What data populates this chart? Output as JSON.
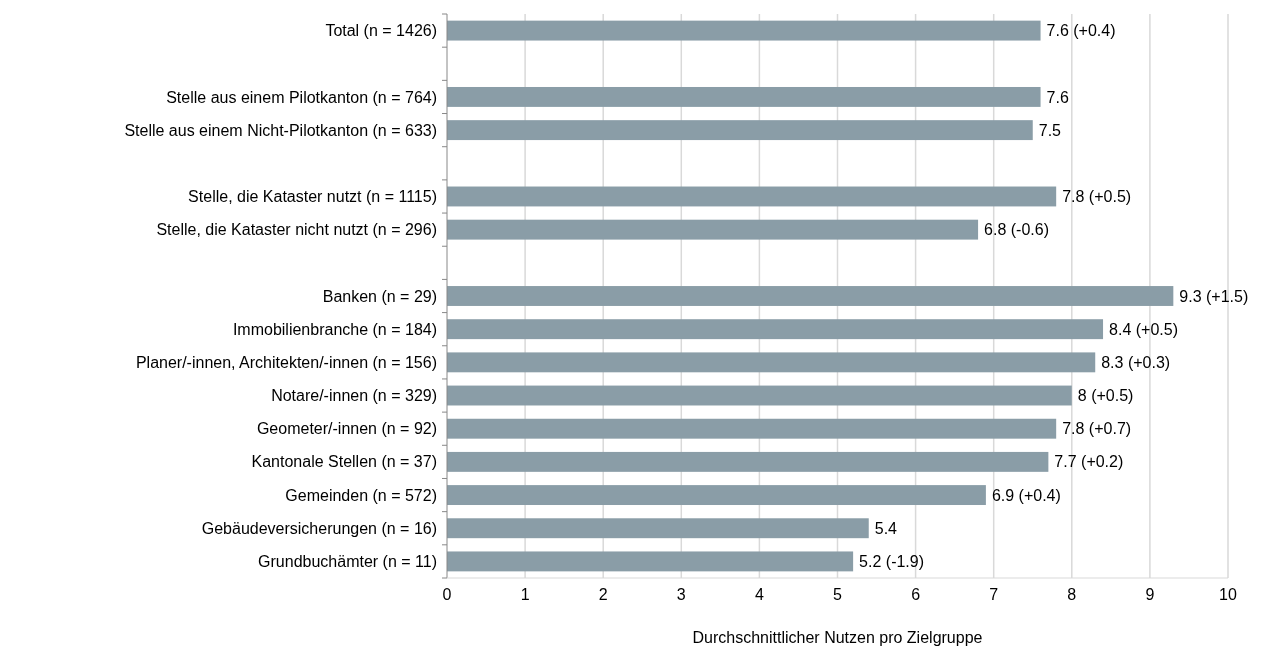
{
  "chart_data": {
    "type": "bar",
    "orientation": "horizontal",
    "xlabel": "Durchschnittlicher Nutzen pro Zielgruppe",
    "categories": [
      "Total (n = 1426)",
      null,
      "Stelle aus einem Pilotkanton (n = 764)",
      "Stelle aus einem Nicht-Pilotkanton (n = 633)",
      null,
      "Stelle, die Kataster nutzt (n = 1115)",
      "Stelle, die Kataster nicht nutzt (n = 296)",
      null,
      "Banken (n = 29)",
      "Immobilienbranche (n = 184)",
      "Planer/-innen, Architekten/-innen (n = 156)",
      "Notare/-innen (n = 329)",
      "Geometer/-innen (n = 92)",
      "Kantonale Stellen  (n = 37)",
      "Gemeinden (n = 572)",
      "Gebäudeversicherungen (n = 16)",
      "Grundbuchämter (n = 11)"
    ],
    "values": [
      7.6,
      null,
      7.6,
      7.5,
      null,
      7.8,
      6.8,
      null,
      9.3,
      8.4,
      8.3,
      8,
      7.8,
      7.7,
      6.9,
      5.4,
      5.2
    ],
    "value_labels": [
      "7.6 (+0.4)",
      null,
      "7.6",
      "7.5",
      null,
      "7.8 (+0.5)",
      "6.8 (-0.6)",
      null,
      "9.3 (+1.5)",
      "8.4 (+0.5)",
      "8.3 (+0.3)",
      "8 (+0.5)",
      "7.8 (+0.7)",
      "7.7 (+0.2)",
      "6.9 (+0.4)",
      "5.4",
      "5.2 (-1.9)"
    ],
    "color": "#8a9da7",
    "xlim": [
      0,
      10
    ],
    "xticks": [
      0,
      1,
      2,
      3,
      4,
      5,
      6,
      7,
      8,
      9,
      10
    ],
    "grid": "x"
  }
}
